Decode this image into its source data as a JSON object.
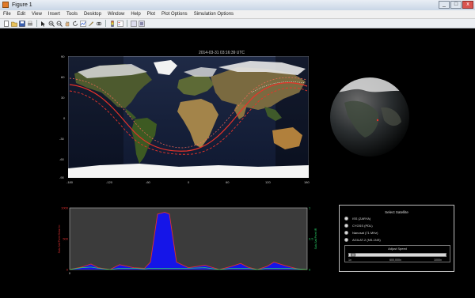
{
  "window": {
    "title": "Figure 1",
    "buttons": {
      "minimize": "_",
      "maximize": "□",
      "close": "x"
    }
  },
  "menu": [
    "File",
    "Edit",
    "View",
    "Insert",
    "Tools",
    "Desktop",
    "Window",
    "Help",
    "Plot",
    "Plot Options",
    "Simulation Options"
  ],
  "toolbar_icons": [
    "new-icon",
    "open-icon",
    "save-icon",
    "print-icon",
    "arrow-icon",
    "zoom-in-icon",
    "zoom-out-icon",
    "pan-icon",
    "rotate-icon",
    "data-cursor-icon",
    "brush-icon",
    "link-icon",
    "colorbar-icon",
    "legend-icon",
    "hide-plot-icon",
    "show-plot-icon"
  ],
  "map": {
    "title": "2014-03-31 03:16:39 UTC",
    "y_ticks": [
      "90",
      "60",
      "30",
      "0",
      "-30",
      "-60",
      "-90"
    ],
    "x_ticks": [
      "-180",
      "-120",
      "-60",
      "0",
      "60",
      "120",
      "180"
    ]
  },
  "chart_data": {
    "type": "area",
    "title": "",
    "xlabel": "",
    "ylabel_left": "Sub-Sat Point Solar Irr.",
    "ylabel_right": "Sub-Sat Point IR",
    "left_ticks": [
      "1000",
      "500",
      "0"
    ],
    "right_ticks": [
      "1",
      "0.5",
      "0"
    ],
    "x_tick_labels": [
      "0"
    ],
    "ylim": [
      0,
      1
    ],
    "colors": {
      "fill": "#1515e8",
      "edge": "#e23030",
      "ir_line": "#2ad46a",
      "left_axis": "#e23030",
      "right_axis": "#2ad46a"
    },
    "x": [
      0,
      0.05,
      0.09,
      0.12,
      0.17,
      0.21,
      0.27,
      0.315,
      0.34,
      0.37,
      0.4,
      0.42,
      0.45,
      0.5,
      0.57,
      0.63,
      0.68,
      0.72,
      0.75,
      0.79,
      0.83,
      0.86,
      0.91,
      0.96,
      1
    ],
    "series": [
      {
        "values": [
          0.0,
          0.04,
          0.09,
          0.03,
          0.0,
          0.08,
          0.03,
          0.02,
          0.12,
          0.9,
          0.93,
          0.9,
          0.12,
          0.03,
          0.07,
          0.0,
          0.05,
          0.1,
          0.04,
          0.0,
          0.05,
          0.12,
          0.06,
          0.01,
          0.0
        ]
      },
      {
        "values": [
          0.0,
          0.03,
          0.04,
          0.02,
          0.0,
          0.02,
          0.02,
          0.01,
          0.02,
          0.02,
          0.02,
          0.02,
          0.02,
          0.02,
          0.03,
          0.0,
          0.02,
          0.02,
          0.02,
          0.0,
          0.02,
          0.02,
          0.02,
          0.01,
          0.0
        ]
      }
    ]
  },
  "panel": {
    "title": "Select Satellite",
    "options": [
      {
        "label": "ISS (ZARYA)"
      },
      {
        "label": "CYGSS (PDL)"
      },
      {
        "label": "Nanosat (71 MHz)"
      },
      {
        "label": "AGILAT-2 (NS-1NS)"
      }
    ],
    "speed": {
      "title": "Adjust Speed",
      "min_label": "1x",
      "mid_label": "600,000x",
      "max_label": "1000x",
      "value_fraction": 0.02
    }
  }
}
